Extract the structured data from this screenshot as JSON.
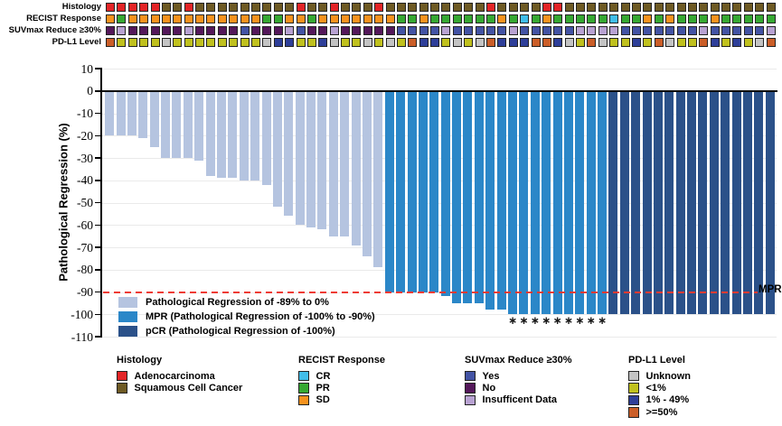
{
  "palette": {
    "histology": {
      "A": "#e32426",
      "S": "#6e5a24"
    },
    "recist": {
      "CR": "#41bde9",
      "PR": "#36a832",
      "SD": "#f6921e"
    },
    "suvmax": {
      "Y": "#4353a4",
      "N": "#54185a",
      "I": "#b8a2d2"
    },
    "pdl1": {
      "U": "#c4c4c4",
      "L": "#c0c11e",
      "M": "#2e3f99",
      "H": "#cb5e28"
    },
    "bars": {
      "reg": "#b5c4e0",
      "mpr": "#2b87c8",
      "pcr": "#2b5189"
    },
    "mpr_line": "#ee3b33",
    "square_border": "#232323"
  },
  "tracks_panel": {
    "rows": [
      {
        "key": "histology",
        "label": "Histology"
      },
      {
        "key": "recist",
        "label": "RECIST Response"
      },
      {
        "key": "suvmax",
        "label": "SUVmax Reduce ≥30%"
      },
      {
        "key": "pdl1",
        "label": "PD-L1 Level"
      }
    ]
  },
  "chart_data": {
    "type": "bar",
    "subtype": "waterfall-oncoprint",
    "title": "",
    "xlabel": "",
    "ylabel": "Pathological Regression (%)",
    "ylim": [
      -110,
      10
    ],
    "yticks": [
      10,
      0,
      -10,
      -20,
      -30,
      -40,
      -50,
      -60,
      -70,
      -80,
      -90,
      -100,
      -110
    ],
    "grid": true,
    "n_patients": 60,
    "reference_line": {
      "y": -90,
      "label": "MPR",
      "style": "dashed",
      "color": "#ee3b33"
    },
    "values": [
      -20,
      -20,
      -20,
      -21,
      -25,
      -30,
      -30,
      -30,
      -31,
      -38,
      -39,
      -39,
      -40,
      -40,
      -42,
      -52,
      -56,
      -60,
      -61,
      -62,
      -65,
      -65,
      -69,
      -74,
      -79,
      -90,
      -90,
      -90,
      -90,
      -90,
      -92,
      -95,
      -95,
      -95,
      -98,
      -98,
      -100,
      -100,
      -100,
      -100,
      -100,
      -100,
      -100,
      -100,
      -100,
      -100,
      -100,
      -100,
      -100,
      -100,
      -100,
      -100,
      -100,
      -100,
      -100,
      -100,
      -100,
      -100,
      -100,
      -100
    ],
    "bar_segments": [
      {
        "class": "reg",
        "count": 25
      },
      {
        "class": "mpr",
        "count": 20
      },
      {
        "class": "pcr",
        "count": 15
      }
    ],
    "asterisk_patients": [
      37,
      38,
      39,
      40,
      41,
      42,
      43,
      44,
      45
    ],
    "asterisk_glyph": "∗",
    "tracks": {
      "histology": [
        "A",
        "A",
        "A",
        "A",
        "A",
        "S",
        "S",
        "A",
        "S",
        "S",
        "S",
        "S",
        "S",
        "S",
        "S",
        "S",
        "S",
        "A",
        "S",
        "S",
        "A",
        "S",
        "S",
        "S",
        "A",
        "S",
        "S",
        "S",
        "S",
        "S",
        "S",
        "S",
        "S",
        "S",
        "A",
        "S",
        "S",
        "S",
        "S",
        "A",
        "A",
        "S",
        "S",
        "S",
        "S",
        "S",
        "S",
        "S",
        "S",
        "S",
        "S",
        "S",
        "S",
        "S",
        "S",
        "S",
        "S",
        "S",
        "S",
        "S"
      ],
      "recist": [
        "SD",
        "PR",
        "SD",
        "SD",
        "SD",
        "SD",
        "SD",
        "SD",
        "SD",
        "SD",
        "SD",
        "SD",
        "SD",
        "SD",
        "PR",
        "PR",
        "SD",
        "SD",
        "PR",
        "SD",
        "SD",
        "SD",
        "SD",
        "SD",
        "SD",
        "SD",
        "PR",
        "PR",
        "SD",
        "PR",
        "PR",
        "PR",
        "PR",
        "PR",
        "PR",
        "SD",
        "PR",
        "CR",
        "PR",
        "SD",
        "PR",
        "PR",
        "PR",
        "PR",
        "PR",
        "CR",
        "PR",
        "PR",
        "SD",
        "PR",
        "SD",
        "PR",
        "PR",
        "PR",
        "SD",
        "PR",
        "PR",
        "PR",
        "PR",
        "PR"
      ],
      "suvmax": [
        "N",
        "I",
        "N",
        "N",
        "N",
        "N",
        "N",
        "I",
        "N",
        "N",
        "N",
        "N",
        "Y",
        "N",
        "N",
        "N",
        "I",
        "Y",
        "N",
        "N",
        "I",
        "N",
        "N",
        "N",
        "N",
        "N",
        "Y",
        "Y",
        "Y",
        "Y",
        "I",
        "Y",
        "Y",
        "Y",
        "Y",
        "Y",
        "I",
        "Y",
        "Y",
        "Y",
        "Y",
        "Y",
        "I",
        "I",
        "I",
        "I",
        "Y",
        "Y",
        "Y",
        "Y",
        "Y",
        "Y",
        "Y",
        "I",
        "Y",
        "Y",
        "Y",
        "Y",
        "Y",
        "I"
      ],
      "pdl1": [
        "H",
        "L",
        "L",
        "L",
        "L",
        "U",
        "L",
        "L",
        "L",
        "L",
        "L",
        "L",
        "L",
        "L",
        "U",
        "M",
        "M",
        "L",
        "L",
        "M",
        "U",
        "L",
        "L",
        "U",
        "L",
        "U",
        "L",
        "H",
        "M",
        "M",
        "L",
        "U",
        "L",
        "U",
        "H",
        "M",
        "M",
        "M",
        "H",
        "H",
        "M",
        "U",
        "L",
        "H",
        "U",
        "L",
        "L",
        "M",
        "L",
        "H",
        "U",
        "L",
        "L",
        "H",
        "M",
        "L",
        "M",
        "L",
        "U",
        "H"
      ]
    }
  },
  "plot_legend": {
    "items": [
      {
        "class": "reg",
        "label": "Pathological Regression of -89% to 0%"
      },
      {
        "class": "mpr",
        "label": "MPR (Pathological Regression of -100% to -90%)"
      },
      {
        "class": "pcr",
        "label": "pCR (Pathological Regression of -100%)"
      }
    ]
  },
  "bottom_legends": [
    {
      "title": "Histology",
      "palette_key": "histology",
      "items": [
        {
          "code": "A",
          "label": "Adenocarcinoma"
        },
        {
          "code": "S",
          "label": "Squamous Cell Cancer"
        }
      ]
    },
    {
      "title": "RECIST Response",
      "palette_key": "recist",
      "items": [
        {
          "code": "CR",
          "label": "CR"
        },
        {
          "code": "PR",
          "label": "PR"
        },
        {
          "code": "SD",
          "label": "SD"
        }
      ]
    },
    {
      "title": "SUVmax Reduce ≥30%",
      "palette_key": "suvmax",
      "items": [
        {
          "code": "Y",
          "label": "Yes"
        },
        {
          "code": "N",
          "label": "No"
        },
        {
          "code": "I",
          "label": "Insufficent Data"
        }
      ]
    },
    {
      "title": "PD-L1 Level",
      "palette_key": "pdl1",
      "items": [
        {
          "code": "U",
          "label": "Unknown"
        },
        {
          "code": "L",
          "label": "<1%"
        },
        {
          "code": "M",
          "label": "1% - 49%"
        },
        {
          "code": "H",
          "label": ">=50%"
        }
      ]
    }
  ]
}
